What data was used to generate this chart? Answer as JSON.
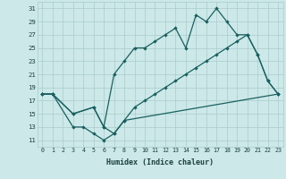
{
  "xlabel": "Humidex (Indice chaleur)",
  "bg_color": "#cce8e8",
  "grid_color": "#aacccc",
  "line_color": "#1a6060",
  "xlim": [
    -0.5,
    23.5
  ],
  "ylim": [
    10,
    32
  ],
  "yticks": [
    11,
    13,
    15,
    17,
    19,
    21,
    23,
    25,
    27,
    29,
    31
  ],
  "xticks": [
    0,
    1,
    2,
    3,
    4,
    5,
    6,
    7,
    8,
    9,
    10,
    11,
    12,
    13,
    14,
    15,
    16,
    17,
    18,
    19,
    20,
    21,
    22,
    23
  ],
  "curve1_x": [
    0,
    1,
    3,
    5,
    6,
    7,
    8,
    9,
    10,
    11,
    12,
    13,
    14,
    15,
    16,
    17,
    18,
    19,
    20,
    21,
    22,
    23
  ],
  "curve1_y": [
    18,
    18,
    15,
    16,
    13,
    21,
    23,
    25,
    25,
    26,
    27,
    28,
    25,
    30,
    29,
    31,
    29,
    27,
    27,
    24,
    20,
    18
  ],
  "curve2_x": [
    0,
    1,
    3,
    4,
    5,
    6,
    7,
    8,
    23
  ],
  "curve2_y": [
    18,
    18,
    13,
    13,
    12,
    11,
    12,
    14,
    18
  ],
  "curve3_x": [
    0,
    1,
    3,
    5,
    6,
    7,
    8,
    9,
    10,
    11,
    12,
    13,
    14,
    15,
    16,
    17,
    18,
    19,
    20,
    21,
    22,
    23
  ],
  "curve3_y": [
    18,
    18,
    15,
    16,
    13,
    12,
    14,
    16,
    17,
    18,
    19,
    20,
    21,
    22,
    23,
    24,
    25,
    26,
    27,
    24,
    20,
    18
  ]
}
